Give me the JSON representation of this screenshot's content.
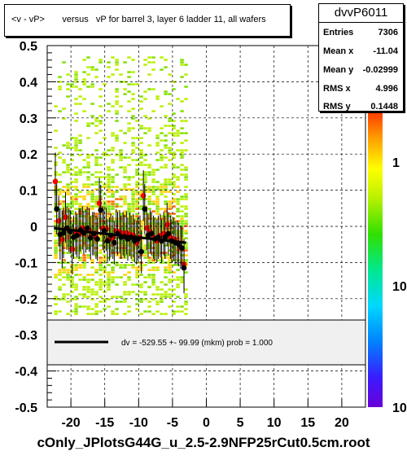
{
  "title_box": {
    "text": "<v - vP>       versus   vP for barrel 3, layer 6 ladder 11, all wafers"
  },
  "stats": {
    "name": "dvvP6011",
    "rows": [
      {
        "label": "Entries",
        "value": "7306"
      },
      {
        "label": "Mean x",
        "value": "-11.04"
      },
      {
        "label": "Mean y",
        "value": "-0.02999"
      },
      {
        "label": "RMS x",
        "value": "4.996"
      },
      {
        "label": "RMS y",
        "value": "0.1448"
      }
    ]
  },
  "legend": {
    "text": "dv = -529.55 +- 99.99 (mkm) prob = 1.000"
  },
  "footer": {
    "text": "cOnly_JPlotsG44G_u_2.5-2.9NFP25rCut0.5cm.root"
  },
  "colorbar": {
    "tick_labels": [
      "1",
      "10",
      "10"
    ]
  },
  "colors": {
    "fit_line": "#000000",
    "marker_red": "#ff0000",
    "marker_black": "#000000",
    "legend_bg": "#f0f0f0"
  },
  "chart_data": {
    "type": "scatter",
    "xlim": [
      -23.5,
      23.5
    ],
    "ylim": [
      -0.5,
      0.5
    ],
    "x_ticks": [
      -20,
      -15,
      -10,
      -5,
      0,
      5,
      10,
      15,
      20
    ],
    "x_tick_labels": [
      "-20",
      "-15",
      "-10",
      "-5",
      "0",
      "5",
      "10",
      "15",
      "20"
    ],
    "y_ticks": [
      -0.5,
      -0.4,
      -0.3,
      -0.2,
      -0.1,
      0,
      0.1,
      0.2,
      0.3,
      0.4,
      0.5
    ],
    "y_tick_labels": [
      "-0.5",
      "-0.4",
      "-0.3",
      "-0.2",
      "-0.1",
      "0",
      "0.1",
      "0.2",
      "0.3",
      "0.4",
      "0.5"
    ],
    "grid": true,
    "heatmap_x_range": [
      -22.5,
      -3.0
    ],
    "series": [
      {
        "marker": "red",
        "points": [
          {
            "x": -22.3,
            "y": 0.124,
            "err": 0.08
          },
          {
            "x": -21.8,
            "y": 0.015,
            "err": 0.07
          },
          {
            "x": -21.3,
            "y": -0.036,
            "err": 0.08
          },
          {
            "x": -20.8,
            "y": 0.025,
            "err": 0.07
          },
          {
            "x": -20.3,
            "y": -0.01,
            "err": 0.06
          },
          {
            "x": -19.8,
            "y": -0.063,
            "err": 0.07
          },
          {
            "x": -19.3,
            "y": -0.018,
            "err": 0.06
          },
          {
            "x": -18.8,
            "y": -0.02,
            "err": 0.07
          },
          {
            "x": -18.3,
            "y": -0.004,
            "err": 0.06
          },
          {
            "x": -17.8,
            "y": -0.013,
            "err": 0.06
          },
          {
            "x": -17.3,
            "y": -0.01,
            "err": 0.06
          },
          {
            "x": -16.8,
            "y": -0.02,
            "err": 0.06
          },
          {
            "x": -16.3,
            "y": -0.03,
            "err": 0.06
          },
          {
            "x": -15.8,
            "y": 0.064,
            "err": 0.07
          },
          {
            "x": -15.3,
            "y": -0.005,
            "err": 0.06
          },
          {
            "x": -14.8,
            "y": -0.008,
            "err": 0.06
          },
          {
            "x": -14.3,
            "y": -0.035,
            "err": 0.06
          },
          {
            "x": -13.8,
            "y": -0.03,
            "err": 0.06
          },
          {
            "x": -13.3,
            "y": -0.012,
            "err": 0.06
          },
          {
            "x": -12.8,
            "y": -0.015,
            "err": 0.06
          },
          {
            "x": -12.3,
            "y": -0.02,
            "err": 0.06
          },
          {
            "x": -11.8,
            "y": -0.018,
            "err": 0.06
          },
          {
            "x": -11.3,
            "y": -0.022,
            "err": 0.06
          },
          {
            "x": -10.8,
            "y": -0.025,
            "err": 0.06
          },
          {
            "x": -10.3,
            "y": -0.045,
            "err": 0.06
          },
          {
            "x": -9.8,
            "y": -0.03,
            "err": 0.06
          },
          {
            "x": -9.3,
            "y": 0.085,
            "err": 0.07
          },
          {
            "x": -8.8,
            "y": -0.005,
            "err": 0.06
          },
          {
            "x": -8.3,
            "y": -0.015,
            "err": 0.06
          },
          {
            "x": -7.8,
            "y": -0.03,
            "err": 0.06
          },
          {
            "x": -7.3,
            "y": -0.04,
            "err": 0.06
          },
          {
            "x": -6.8,
            "y": -0.025,
            "err": 0.06
          },
          {
            "x": -6.3,
            "y": -0.02,
            "err": 0.06
          },
          {
            "x": -5.8,
            "y": 0.005,
            "err": 0.06
          },
          {
            "x": -5.3,
            "y": -0.03,
            "err": 0.06
          },
          {
            "x": -4.8,
            "y": -0.035,
            "err": 0.06
          },
          {
            "x": -4.3,
            "y": -0.045,
            "err": 0.06
          },
          {
            "x": -3.8,
            "y": -0.058,
            "err": 0.06
          },
          {
            "x": -3.3,
            "y": -0.105,
            "err": 0.07
          }
        ]
      },
      {
        "marker": "black",
        "points": [
          {
            "x": -22.1,
            "y": 0.048,
            "err": 0.07
          },
          {
            "x": -21.6,
            "y": -0.022,
            "err": 0.07
          },
          {
            "x": -21.1,
            "y": -0.018,
            "err": 0.07
          },
          {
            "x": -20.6,
            "y": -0.005,
            "err": 0.06
          },
          {
            "x": -20.1,
            "y": -0.015,
            "err": 0.06
          },
          {
            "x": -19.6,
            "y": -0.03,
            "err": 0.06
          },
          {
            "x": -19.1,
            "y": -0.025,
            "err": 0.06
          },
          {
            "x": -18.6,
            "y": -0.01,
            "err": 0.06
          },
          {
            "x": -18.1,
            "y": -0.018,
            "err": 0.06
          },
          {
            "x": -17.6,
            "y": -0.005,
            "err": 0.06
          },
          {
            "x": -17.1,
            "y": -0.032,
            "err": 0.06
          },
          {
            "x": -16.6,
            "y": -0.02,
            "err": 0.06
          },
          {
            "x": -16.1,
            "y": -0.035,
            "err": 0.06
          },
          {
            "x": -15.6,
            "y": 0.045,
            "err": 0.07
          },
          {
            "x": -15.1,
            "y": -0.012,
            "err": 0.06
          },
          {
            "x": -14.6,
            "y": -0.04,
            "err": 0.06
          },
          {
            "x": -14.1,
            "y": -0.025,
            "err": 0.06
          },
          {
            "x": -13.6,
            "y": -0.045,
            "err": 0.06
          },
          {
            "x": -13.1,
            "y": -0.02,
            "err": 0.06
          },
          {
            "x": -12.6,
            "y": -0.03,
            "err": 0.06
          },
          {
            "x": -12.1,
            "y": -0.028,
            "err": 0.06
          },
          {
            "x": -11.6,
            "y": -0.035,
            "err": 0.06
          },
          {
            "x": -11.1,
            "y": -0.03,
            "err": 0.06
          },
          {
            "x": -10.6,
            "y": -0.04,
            "err": 0.06
          },
          {
            "x": -10.1,
            "y": -0.035,
            "err": 0.06
          },
          {
            "x": -9.6,
            "y": -0.07,
            "err": 0.06
          },
          {
            "x": -9.1,
            "y": 0.048,
            "err": 0.07
          },
          {
            "x": -8.6,
            "y": -0.025,
            "err": 0.06
          },
          {
            "x": -8.1,
            "y": -0.02,
            "err": 0.06
          },
          {
            "x": -7.6,
            "y": -0.035,
            "err": 0.06
          },
          {
            "x": -7.1,
            "y": -0.03,
            "err": 0.06
          },
          {
            "x": -6.6,
            "y": -0.04,
            "err": 0.06
          },
          {
            "x": -6.1,
            "y": -0.03,
            "err": 0.06
          },
          {
            "x": -5.6,
            "y": -0.02,
            "err": 0.06
          },
          {
            "x": -5.1,
            "y": -0.04,
            "err": 0.06
          },
          {
            "x": -4.6,
            "y": -0.045,
            "err": 0.06
          },
          {
            "x": -4.1,
            "y": -0.05,
            "err": 0.06
          },
          {
            "x": -3.6,
            "y": -0.06,
            "err": 0.06
          },
          {
            "x": -3.3,
            "y": -0.115,
            "err": 0.07
          }
        ]
      }
    ],
    "fit": {
      "x_start": -22.5,
      "x_end": -3.0,
      "y_start": -0.005,
      "y_end": -0.045
    }
  }
}
